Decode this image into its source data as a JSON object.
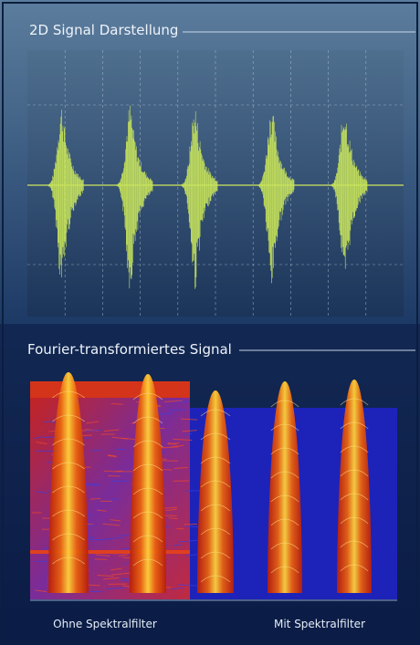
{
  "sections": [
    {
      "title": "2D Signal Darstellung"
    },
    {
      "title": "Fourier-transformiertes Signal",
      "captions": [
        "Ohne Spektralfilter",
        "Mit Spektralfilter"
      ]
    }
  ]
}
